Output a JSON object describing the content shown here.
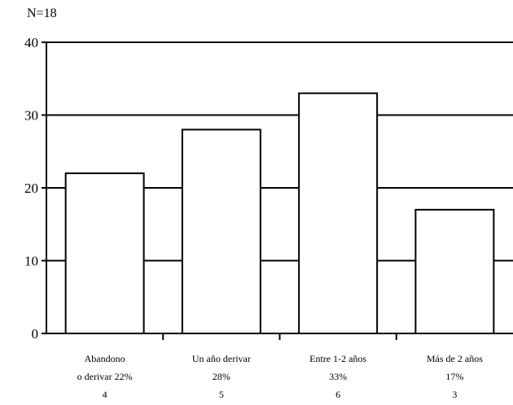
{
  "note": "N=18",
  "chart_data": {
    "type": "bar",
    "categories": [
      {
        "lines": [
          "Abandono",
          "o derivar 22%",
          "4"
        ]
      },
      {
        "lines": [
          "Un año derivar",
          "28%",
          "5"
        ]
      },
      {
        "lines": [
          "Entre 1-2 años",
          "33%",
          "6"
        ]
      },
      {
        "lines": [
          "Más de 2 años",
          "17%",
          "3"
        ]
      }
    ],
    "values": [
      22,
      28,
      33,
      17
    ],
    "ylim": [
      0,
      40
    ],
    "yticks": [
      "0",
      "10",
      "20",
      "30",
      "40"
    ],
    "grid": true,
    "bar_color": "#ffffff",
    "edge_color": "#000000"
  }
}
